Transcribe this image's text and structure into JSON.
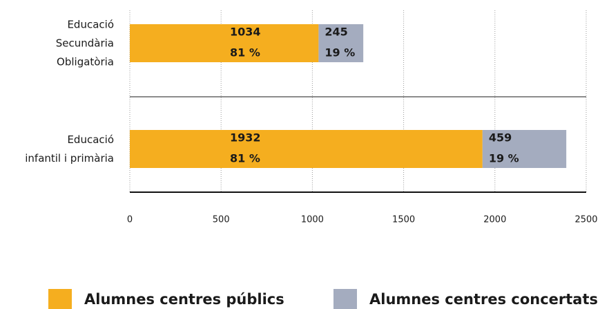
{
  "chart_data": {
    "type": "stacked-barh",
    "categories": [
      "Educació\nSecundària\nObligatòria",
      "Educació\ninfantil i primària"
    ],
    "series": [
      {
        "name": "Alumnes centres públics",
        "color": "#f5ae1f",
        "values": [
          1034,
          1932
        ],
        "percent_labels": [
          "81 %",
          "81 %"
        ]
      },
      {
        "name": "Alumnes centres concertats",
        "color": "#a4acbf",
        "values": [
          245,
          459
        ],
        "percent_labels": [
          "19 %",
          "19 %"
        ]
      }
    ],
    "xlim": [
      0,
      2500
    ],
    "xticks": [
      0,
      500,
      1000,
      1500,
      2000,
      2500
    ],
    "grid": true,
    "legend": "bottom"
  }
}
